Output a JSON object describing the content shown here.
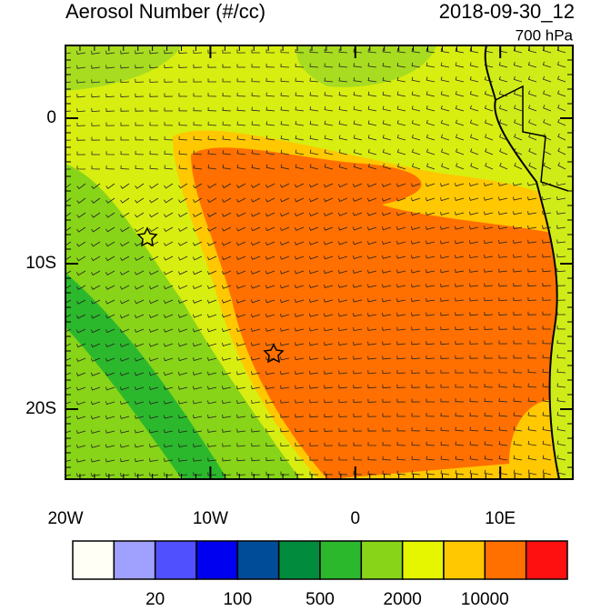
{
  "title": "Aerosol Number (#/cc)",
  "date": "2018-09-30_12",
  "level": "700 hPa",
  "x_axis": {
    "labels": [
      "20W",
      "10W",
      "0",
      "10E"
    ]
  },
  "y_axis": {
    "labels": [
      "0",
      "10S",
      "20S"
    ]
  },
  "colorbar": {
    "colors": [
      "#fffff5",
      "#a0a0ff",
      "#5050ff",
      "#0000f0",
      "#004c99",
      "#008c3c",
      "#2cb82c",
      "#88d418",
      "#e6f500",
      "#ffc800",
      "#ff7000",
      "#ff1010"
    ],
    "labels": [
      "20",
      "100",
      "500",
      "2000",
      "10000"
    ]
  }
}
